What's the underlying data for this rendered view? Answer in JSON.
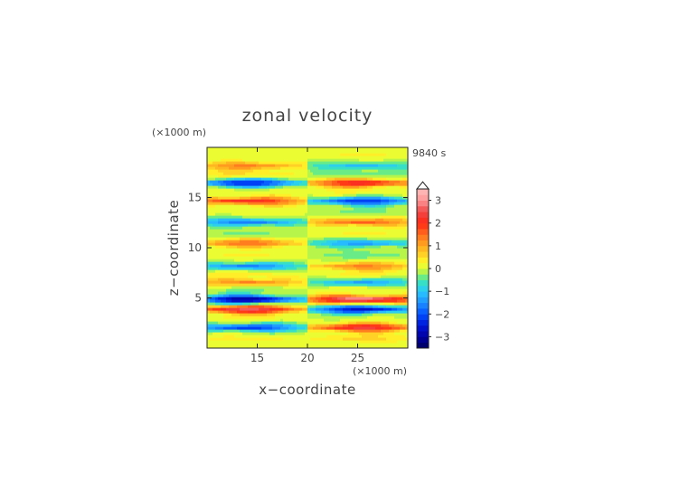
{
  "chart_data": {
    "type": "heatmap",
    "title": "zonal velocity",
    "xlabel": "x−coordinate",
    "ylabel": "z−coordinate",
    "x_unit": "(×1000 m)",
    "y_unit": "(×1000 m)",
    "time_label": "9840 s",
    "xlim": [
      10,
      30
    ],
    "ylim": [
      0,
      20
    ],
    "x_ticks": [
      {
        "value": 15,
        "label": "15"
      },
      {
        "value": 20,
        "label": "20"
      },
      {
        "value": 25,
        "label": "25"
      }
    ],
    "y_ticks": [
      {
        "value": 5,
        "label": "5"
      },
      {
        "value": 10,
        "label": "10"
      },
      {
        "value": 15,
        "label": "15"
      }
    ],
    "colorbar": {
      "range": [
        -3.5,
        3.5
      ],
      "step": 0.25,
      "extend": "max",
      "ticks": [
        {
          "value": 3,
          "label": "3"
        },
        {
          "value": 2,
          "label": "2"
        },
        {
          "value": 1,
          "label": "1"
        },
        {
          "value": 0,
          "label": "0"
        },
        {
          "value": -1,
          "label": "−1"
        },
        {
          "value": -2,
          "label": "−2"
        },
        {
          "value": -3,
          "label": "−3"
        }
      ]
    },
    "bands": [
      {
        "z": 1.0,
        "left": 0.4,
        "right": 0.6
      },
      {
        "z": 2.1,
        "left": -2.2,
        "right": 2.4
      },
      {
        "z": 3.1,
        "left": 0.3,
        "right": 0.0
      },
      {
        "z": 3.9,
        "left": 2.6,
        "right": -2.6
      },
      {
        "z": 4.9,
        "left": -3.1,
        "right": 3.2
      },
      {
        "z": 5.9,
        "left": -0.3,
        "right": 0.2
      },
      {
        "z": 6.6,
        "left": 1.3,
        "right": -1.3
      },
      {
        "z": 7.4,
        "left": 0.4,
        "right": 0.3
      },
      {
        "z": 8.2,
        "left": -1.6,
        "right": 1.3
      },
      {
        "z": 9.3,
        "left": 0.3,
        "right": -0.4
      },
      {
        "z": 10.5,
        "left": 1.5,
        "right": -1.4
      },
      {
        "z": 11.5,
        "left": -0.3,
        "right": 0.3
      },
      {
        "z": 12.6,
        "left": -1.7,
        "right": 1.6
      },
      {
        "z": 13.7,
        "left": 0.2,
        "right": -0.3
      },
      {
        "z": 14.7,
        "left": 2.2,
        "right": -2.2
      },
      {
        "z": 15.6,
        "left": 0.2,
        "right": 0.3
      },
      {
        "z": 16.5,
        "left": -2.4,
        "right": 2.3
      },
      {
        "z": 17.4,
        "left": 0.5,
        "right": -0.5
      },
      {
        "z": 18.2,
        "left": 1.3,
        "right": -1.1
      },
      {
        "z": 19.3,
        "left": 0.2,
        "right": 0.3
      }
    ]
  }
}
